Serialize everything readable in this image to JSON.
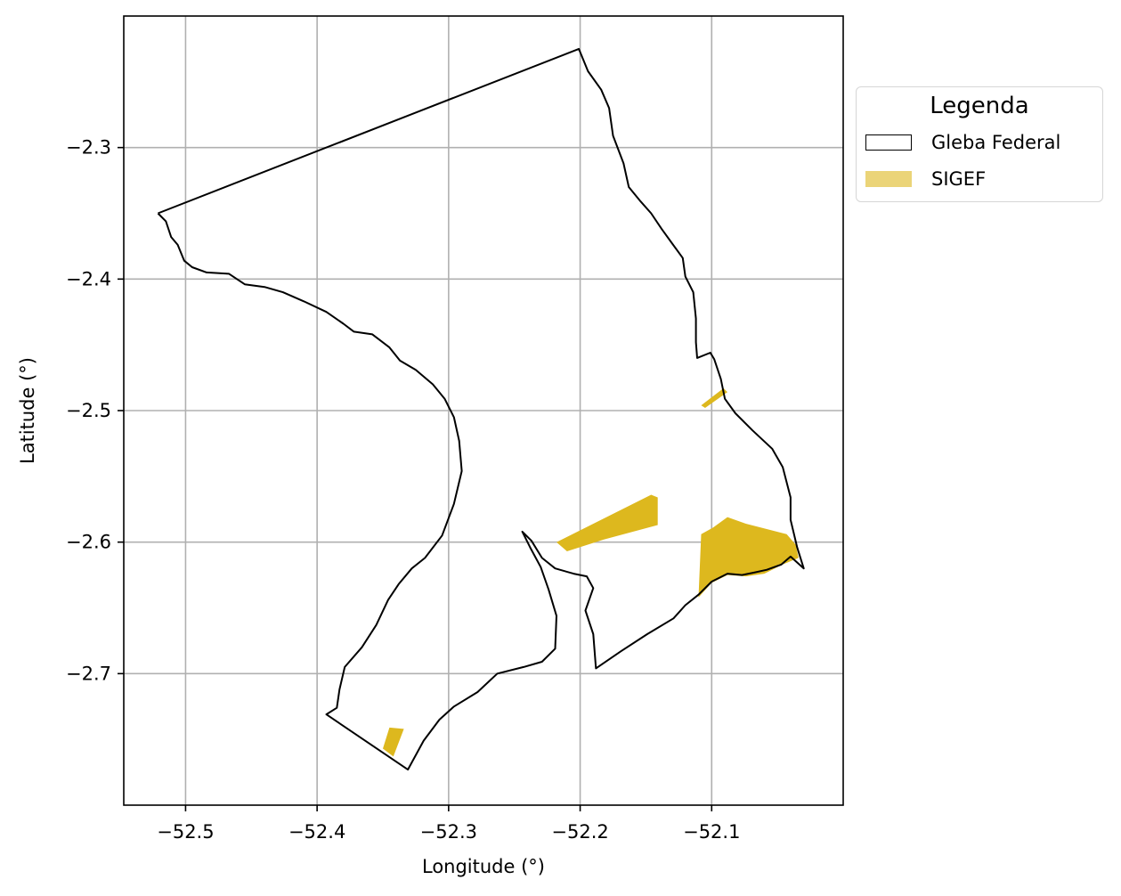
{
  "chart_data": {
    "type": "map",
    "title": "",
    "xlabel": "Longitude (°)",
    "ylabel": "Latitude (°)",
    "xlim": [
      -52.547,
      -52.0
    ],
    "ylim": [
      -2.8,
      -2.2
    ],
    "xticks": [
      -52.5,
      -52.4,
      -52.3,
      -52.2,
      -52.1
    ],
    "xtick_labels": [
      "−52.5",
      "−52.4",
      "−52.3",
      "−52.2",
      "−52.1"
    ],
    "yticks": [
      -2.3,
      -2.4,
      -2.5,
      -2.6,
      -2.7
    ],
    "ytick_labels": [
      "−2.3",
      "−2.4",
      "−2.5",
      "−2.6",
      "−2.7"
    ],
    "grid": true,
    "legend": {
      "title": "Legenda",
      "placement": "outside right, top",
      "entries": [
        {
          "label": "Gleba Federal",
          "style": "outline",
          "color": "#000000"
        },
        {
          "label": "SIGEF",
          "style": "fill",
          "color": "#DDB81E"
        }
      ]
    },
    "layers": [
      {
        "name": "Gleba Federal",
        "kind": "outline",
        "color": "#000000",
        "coordinates": [
          [
            -52.521,
            -2.35
          ],
          [
            -52.515,
            -2.356
          ],
          [
            -52.511,
            -2.368
          ],
          [
            -52.506,
            -2.374
          ],
          [
            -52.501,
            -2.386
          ],
          [
            -52.495,
            -2.391
          ],
          [
            -52.484,
            -2.395
          ],
          [
            -52.467,
            -2.396
          ],
          [
            -52.455,
            -2.404
          ],
          [
            -52.44,
            -2.406
          ],
          [
            -52.426,
            -2.41
          ],
          [
            -52.41,
            -2.417
          ],
          [
            -52.393,
            -2.425
          ],
          [
            -52.38,
            -2.434
          ],
          [
            -52.372,
            -2.44
          ],
          [
            -52.358,
            -2.442
          ],
          [
            -52.345,
            -2.452
          ],
          [
            -52.337,
            -2.462
          ],
          [
            -52.325,
            -2.469
          ],
          [
            -52.312,
            -2.48
          ],
          [
            -52.303,
            -2.491
          ],
          [
            -52.296,
            -2.505
          ],
          [
            -52.292,
            -2.523
          ],
          [
            -52.29,
            -2.546
          ],
          [
            -52.296,
            -2.571
          ],
          [
            -52.305,
            -2.595
          ],
          [
            -52.318,
            -2.612
          ],
          [
            -52.328,
            -2.62
          ],
          [
            -52.338,
            -2.632
          ],
          [
            -52.346,
            -2.644
          ],
          [
            -52.355,
            -2.663
          ],
          [
            -52.366,
            -2.68
          ],
          [
            -52.379,
            -2.695
          ],
          [
            -52.383,
            -2.712
          ],
          [
            -52.385,
            -2.726
          ],
          [
            -52.393,
            -2.731
          ],
          [
            -52.331,
            -2.773
          ],
          [
            -52.319,
            -2.751
          ],
          [
            -52.307,
            -2.735
          ],
          [
            -52.296,
            -2.725
          ],
          [
            -52.278,
            -2.714
          ],
          [
            -52.263,
            -2.7
          ],
          [
            -52.243,
            -2.695
          ],
          [
            -52.229,
            -2.691
          ],
          [
            -52.219,
            -2.681
          ],
          [
            -52.218,
            -2.656
          ],
          [
            -52.224,
            -2.636
          ],
          [
            -52.23,
            -2.619
          ],
          [
            -52.238,
            -2.604
          ],
          [
            -52.244,
            -2.592
          ],
          [
            -52.237,
            -2.599
          ],
          [
            -52.229,
            -2.612
          ],
          [
            -52.219,
            -2.62
          ],
          [
            -52.205,
            -2.624
          ],
          [
            -52.195,
            -2.626
          ],
          [
            -52.19,
            -2.635
          ],
          [
            -52.196,
            -2.652
          ],
          [
            -52.19,
            -2.67
          ],
          [
            -52.188,
            -2.696
          ],
          [
            -52.169,
            -2.683
          ],
          [
            -52.149,
            -2.67
          ],
          [
            -52.129,
            -2.658
          ],
          [
            -52.12,
            -2.648
          ],
          [
            -52.11,
            -2.64
          ],
          [
            -52.1,
            -2.63
          ],
          [
            -52.088,
            -2.624
          ],
          [
            -52.077,
            -2.625
          ],
          [
            -52.067,
            -2.623
          ],
          [
            -52.058,
            -2.621
          ],
          [
            -52.047,
            -2.617
          ],
          [
            -52.04,
            -2.611
          ],
          [
            -52.03,
            -2.62
          ],
          [
            -52.035,
            -2.604
          ],
          [
            -52.04,
            -2.583
          ],
          [
            -52.04,
            -2.566
          ],
          [
            -52.046,
            -2.543
          ],
          [
            -52.054,
            -2.529
          ],
          [
            -52.069,
            -2.515
          ],
          [
            -52.082,
            -2.502
          ],
          [
            -52.09,
            -2.491
          ],
          [
            -52.093,
            -2.476
          ],
          [
            -52.098,
            -2.461
          ],
          [
            -52.101,
            -2.456
          ],
          [
            -52.111,
            -2.46
          ],
          [
            -52.112,
            -2.448
          ],
          [
            -52.112,
            -2.43
          ],
          [
            -52.114,
            -2.41
          ],
          [
            -52.12,
            -2.398
          ],
          [
            -52.122,
            -2.384
          ],
          [
            -52.13,
            -2.373
          ],
          [
            -52.138,
            -2.362
          ],
          [
            -52.146,
            -2.35
          ],
          [
            -52.154,
            -2.341
          ],
          [
            -52.163,
            -2.33
          ],
          [
            -52.167,
            -2.312
          ],
          [
            -52.175,
            -2.291
          ],
          [
            -52.178,
            -2.27
          ],
          [
            -52.184,
            -2.256
          ],
          [
            -52.194,
            -2.242
          ],
          [
            -52.201,
            -2.225
          ],
          [
            -52.521,
            -2.35
          ]
        ]
      },
      {
        "name": "SIGEF",
        "kind": "fill",
        "color": "#DDB81E",
        "polygons": [
          [
            [
              -52.108,
              -2.496
            ],
            [
              -52.091,
              -2.483
            ],
            [
              -52.088,
              -2.486
            ],
            [
              -52.105,
              -2.498
            ]
          ],
          [
            [
              -52.218,
              -2.6
            ],
            [
              -52.146,
              -2.564
            ],
            [
              -52.141,
              -2.566
            ],
            [
              -52.141,
              -2.587
            ],
            [
              -52.182,
              -2.598
            ],
            [
              -52.21,
              -2.607
            ]
          ],
          [
            [
              -52.108,
              -2.594
            ],
            [
              -52.099,
              -2.589
            ],
            [
              -52.088,
              -2.581
            ],
            [
              -52.074,
              -2.586
            ],
            [
              -52.043,
              -2.594
            ],
            [
              -52.036,
              -2.602
            ],
            [
              -52.034,
              -2.612
            ],
            [
              -52.046,
              -2.617
            ],
            [
              -52.06,
              -2.624
            ],
            [
              -52.074,
              -2.626
            ],
            [
              -52.088,
              -2.625
            ],
            [
              -52.1,
              -2.631
            ],
            [
              -52.11,
              -2.642
            ]
          ],
          [
            [
              -52.35,
              -2.757
            ],
            [
              -52.345,
              -2.741
            ],
            [
              -52.334,
              -2.742
            ],
            [
              -52.342,
              -2.763
            ]
          ]
        ]
      }
    ]
  }
}
